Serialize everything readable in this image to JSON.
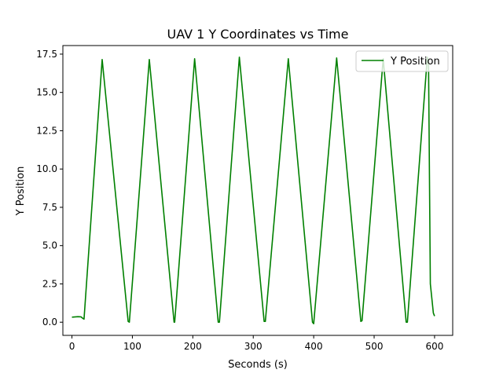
{
  "chart_data": {
    "type": "line",
    "title": "UAV 1 Y Coordinates vs Time",
    "xlabel": "Seconds (s)",
    "ylabel": "Y Position",
    "xlim": [
      -15,
      630
    ],
    "ylim": [
      -0.86,
      18.06
    ],
    "x_ticks": [
      0,
      100,
      200,
      300,
      400,
      500,
      600
    ],
    "y_ticks": [
      0.0,
      2.5,
      5.0,
      7.5,
      10.0,
      12.5,
      15.0,
      17.5
    ],
    "x_tick_labels": [
      "0",
      "100",
      "200",
      "300",
      "400",
      "500",
      "600"
    ],
    "y_tick_labels": [
      "0.0",
      "2.5",
      "5.0",
      "7.5",
      "10.0",
      "12.5",
      "15.0",
      "17.5"
    ],
    "grid": false,
    "legend": {
      "position": "top-right",
      "entries": [
        "Y Position"
      ]
    },
    "series": [
      {
        "name": "Y Position",
        "color": "#008000",
        "x": [
          0,
          10,
          15,
          18,
          20,
          50,
          93,
          95,
          128,
          169,
          170,
          203,
          242,
          244,
          277,
          318,
          320,
          358,
          398,
          400,
          438,
          478,
          480,
          515,
          553,
          555,
          588,
          590,
          593,
          598,
          600
        ],
        "y": [
          0.33,
          0.36,
          0.35,
          0.25,
          0.2,
          17.15,
          0.05,
          0.0,
          17.15,
          0.0,
          0.0,
          17.2,
          0.0,
          0.0,
          17.3,
          0.05,
          0.05,
          17.2,
          0.0,
          -0.1,
          17.25,
          0.05,
          0.1,
          17.2,
          0.0,
          0.0,
          17.3,
          17.0,
          2.5,
          0.6,
          0.4
        ]
      }
    ]
  }
}
